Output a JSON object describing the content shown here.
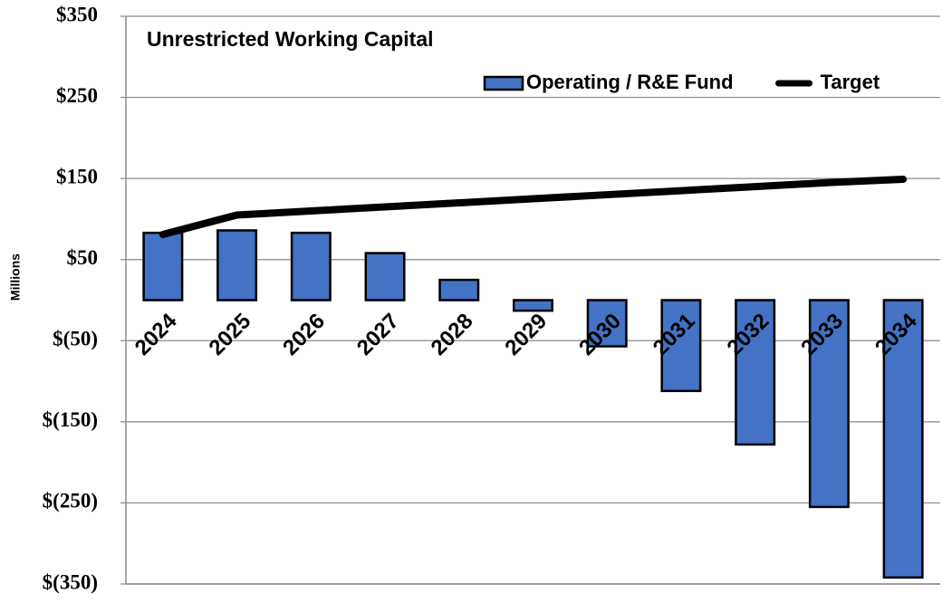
{
  "chart_data": {
    "type": "bar",
    "title": "Unrestricted Working Capital",
    "y_label": "Millions",
    "categories": [
      "2024",
      "2025",
      "2026",
      "2027",
      "2028",
      "2029",
      "2030",
      "2031",
      "2032",
      "2033",
      "2034"
    ],
    "series": [
      {
        "name": "Operating / R&E Fund",
        "type": "bar",
        "color": "#4472c4",
        "values": [
          83,
          86,
          83,
          58,
          25,
          -13,
          -57,
          -112,
          -178,
          -255,
          -342
        ]
      },
      {
        "name": "Target",
        "type": "line",
        "color": "#000000",
        "values": [
          81,
          105,
          110,
          115,
          120,
          125,
          130,
          135,
          140,
          145,
          149
        ]
      }
    ],
    "ylim": [
      -350,
      350
    ],
    "yticks": [
      {
        "value": -350,
        "label": "$(350)"
      },
      {
        "value": -250,
        "label": "$(250)"
      },
      {
        "value": -150,
        "label": "$(150)"
      },
      {
        "value": -50,
        "label": "$(50)"
      },
      {
        "value": 50,
        "label": "$50"
      },
      {
        "value": 150,
        "label": "$150"
      },
      {
        "value": 250,
        "label": "$250"
      },
      {
        "value": 350,
        "label": "$350"
      }
    ],
    "grid": true,
    "legend": "top-right"
  }
}
